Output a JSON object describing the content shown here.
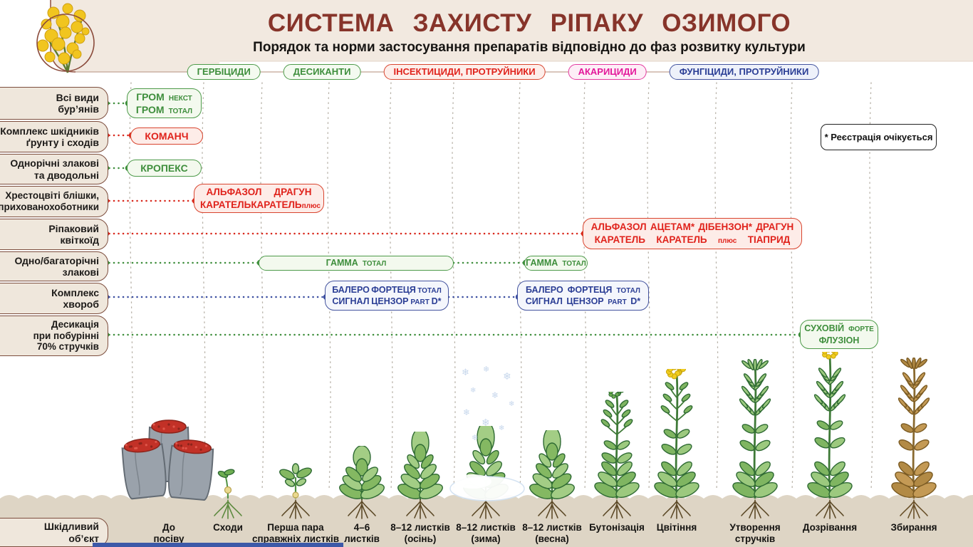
{
  "header": {
    "title": "СИСТЕМА  ЗАХИСТУ  РІПАКУ  ОЗИМОГО",
    "subtitle": "Порядок та норми застосування препаратів відповідно до фаз розвитку культури",
    "logo": "rapeseed-flower"
  },
  "legend": [
    {
      "id": "herbicides",
      "label": "ГЕРБІЦИДИ",
      "color": "green"
    },
    {
      "id": "desiccants",
      "label": "ДЕСИКАНТИ",
      "color": "green"
    },
    {
      "id": "insecticides",
      "label": "ІНСЕКТИЦИДИ, ПРОТРУЙНИКИ",
      "color": "red"
    },
    {
      "id": "acaricides",
      "label": "АКАРИЦИДИ",
      "color": "magenta"
    },
    {
      "id": "fungicides",
      "label": "ФУНГІЦИДИ, ПРОТРУЙНИКИ",
      "color": "blue"
    }
  ],
  "note": "* Реєстрація очікується",
  "rows": [
    {
      "id": "weeds",
      "label": "Всі види\nбур’янів",
      "color": "green"
    },
    {
      "id": "soil-pests",
      "label": "Комплекс шкідників\nґрунту і сходів",
      "color": "red"
    },
    {
      "id": "annual-weeds",
      "label": "Однорічні злакові\nта дводольні",
      "color": "green"
    },
    {
      "id": "flea-beetles",
      "label": "Хрестоцвіті блішки,\nприхованохоботники",
      "color": "red"
    },
    {
      "id": "pollen-beetle",
      "label": "Ріпаковий\nквіткоїд",
      "color": "red"
    },
    {
      "id": "grasses",
      "label": "Одно/багаторічні\nзлакові",
      "color": "green"
    },
    {
      "id": "diseases",
      "label": "Комплекс\nхвороб",
      "color": "blue"
    },
    {
      "id": "desiccation",
      "label": "Десикація\nпри побурінні\n70% стручків",
      "color": "green"
    },
    {
      "id": "pest-object",
      "label": "Шкідливий\nоб’єкт",
      "color": "none"
    }
  ],
  "boxes": [
    {
      "id": "grom",
      "color": "green",
      "lines": [
        [
          {
            "t": "ГРОМ"
          },
          {
            "t": "НЕКСТ",
            "small": true
          }
        ],
        [
          {
            "t": "ГРОМ"
          },
          {
            "t": "ТОТАЛ",
            "small": true
          }
        ]
      ]
    },
    {
      "id": "komanch",
      "color": "red",
      "lines": [
        [
          {
            "t": "КОМАНЧ"
          }
        ]
      ]
    },
    {
      "id": "kropeks",
      "color": "green",
      "lines": [
        [
          {
            "t": "КРОПЕКС"
          }
        ]
      ]
    },
    {
      "id": "alfazol-autumn",
      "color": "red",
      "lines": [
        [
          {
            "t": "АЛЬФАЗОЛ"
          },
          {
            "t": "ДРАГУН"
          }
        ],
        [
          {
            "t": "КАРАТЕЛЬ"
          },
          {
            "t": "КАРАТЕЛЬ"
          },
          {
            "t": "плюс",
            "small": true
          }
        ]
      ]
    },
    {
      "id": "alfazol-spring",
      "color": "red",
      "lines": [
        [
          {
            "t": "АЛЬФАЗОЛ"
          },
          {
            "t": "АЦЕТАМ*"
          },
          {
            "t": "ДІБЕНЗОН*"
          },
          {
            "t": "ДРАГУН"
          }
        ],
        [
          {
            "t": "КАРАТЕЛЬ"
          },
          {
            "t": "КАРАТЕЛЬ"
          },
          {
            "t": "плюс",
            "small": true
          },
          {
            "t": "ТІАПРИД"
          }
        ]
      ]
    },
    {
      "id": "gamma-autumn",
      "color": "green",
      "lines": [
        [
          {
            "t": "ГАММА"
          },
          {
            "t": "ТОТАЛ",
            "small": true
          }
        ]
      ]
    },
    {
      "id": "gamma-spring",
      "color": "green",
      "lines": [
        [
          {
            "t": "ГАММА"
          },
          {
            "t": "ТОТАЛ",
            "small": true
          }
        ]
      ]
    },
    {
      "id": "balero-autumn",
      "color": "blue",
      "lines": [
        [
          {
            "t": "БАЛЕРО"
          },
          {
            "t": "ФОРТЕЦЯ"
          },
          {
            "t": "ТОТАЛ",
            "small": true
          }
        ],
        [
          {
            "t": "СИГНАЛ"
          },
          {
            "t": "ЦЕНЗОР"
          },
          {
            "t": "PART",
            "small": true
          },
          {
            "t": "D*"
          }
        ]
      ]
    },
    {
      "id": "balero-spring",
      "color": "blue",
      "lines": [
        [
          {
            "t": "БАЛЕРО"
          },
          {
            "t": "ФОРТЕЦЯ"
          },
          {
            "t": "ТОТАЛ",
            "small": true
          }
        ],
        [
          {
            "t": "СИГНАЛ"
          },
          {
            "t": "ЦЕНЗОР"
          },
          {
            "t": "PART",
            "small": true
          },
          {
            "t": "D*"
          }
        ]
      ]
    },
    {
      "id": "sukhoviy",
      "color": "green",
      "lines": [
        [
          {
            "t": "СУХОВІЙ"
          },
          {
            "t": "ФОРТЕ",
            "small": true
          }
        ],
        [
          {
            "t": "ФЛУЗІОН"
          }
        ]
      ]
    }
  ],
  "phases": [
    {
      "label": "До\nпосіву",
      "illustration": "seed-bags"
    },
    {
      "label": "Сходи",
      "illustration": "sprout"
    },
    {
      "label": "Перша пара\nсправжніх листків",
      "illustration": "first-leaves"
    },
    {
      "label": "4–6\nлистків",
      "illustration": "rosette-small"
    },
    {
      "label": "8–12 листків\n(осінь)",
      "illustration": "rosette-autumn"
    },
    {
      "label": "8–12 листків\n(зима)",
      "illustration": "rosette-winter"
    },
    {
      "label": "8–12 листків\n(весна)",
      "illustration": "rosette-spring"
    },
    {
      "label": "Бутонізація",
      "illustration": "budding"
    },
    {
      "label": "Цвітіння",
      "illustration": "flowering"
    },
    {
      "label": "Утворення\nстручків",
      "illustration": "pod-formation"
    },
    {
      "label": "Дозрівання",
      "illustration": "ripening"
    },
    {
      "label": "Збирання",
      "illustration": "mature-dry"
    }
  ],
  "colors": {
    "title": "#87342a",
    "header_bg": "#f2e9e0",
    "green": "#3e8e3c",
    "red": "#e0231c",
    "magenta": "#e3189a",
    "blue": "#2b3e95",
    "ground": "#ded5c5",
    "sidebar_bg": "#efe7dc",
    "sidebar_border": "#7d4e3e"
  }
}
